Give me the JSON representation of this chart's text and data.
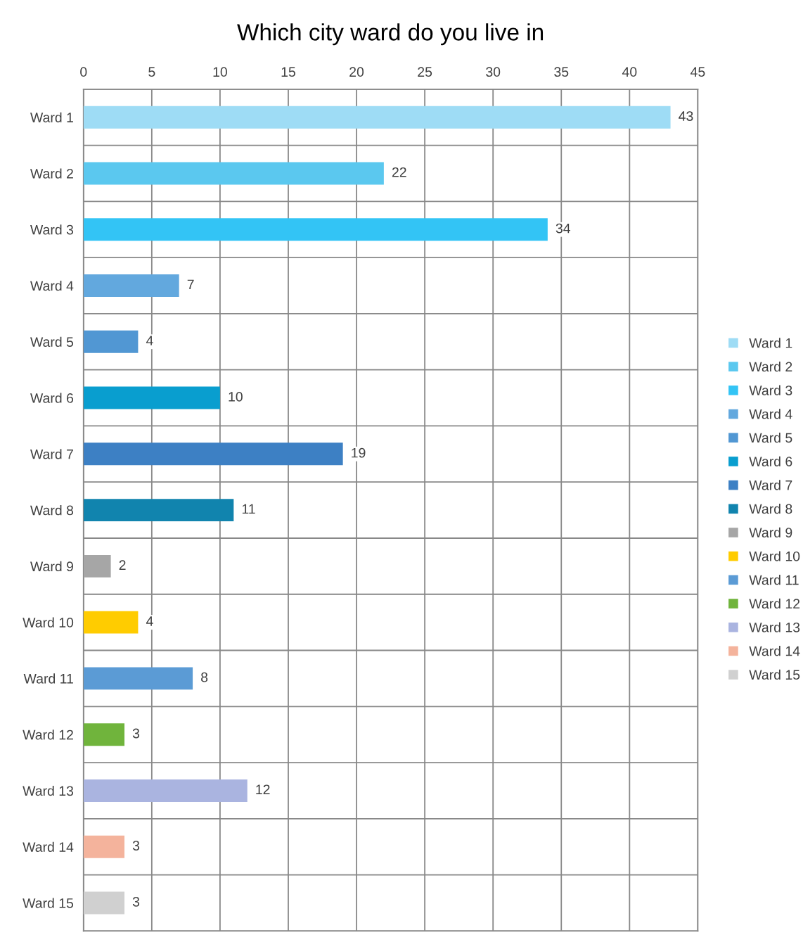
{
  "chart_data": {
    "type": "bar",
    "orientation": "horizontal",
    "title": "Which city ward do you live in",
    "categories": [
      "Ward 1",
      "Ward 2",
      "Ward 3",
      "Ward 4",
      "Ward 5",
      "Ward 6",
      "Ward 7",
      "Ward 8",
      "Ward 9",
      "Ward 10",
      "Ward 11",
      "Ward 12",
      "Ward 13",
      "Ward 14",
      "Ward 15"
    ],
    "series": [
      {
        "name": "Ward 1",
        "color": "#9edcf5",
        "values": [
          43,
          null,
          null,
          null,
          null,
          null,
          null,
          null,
          null,
          null,
          null,
          null,
          null,
          null,
          null
        ]
      },
      {
        "name": "Ward 2",
        "color": "#5bc8ef",
        "values": [
          null,
          22,
          null,
          null,
          null,
          null,
          null,
          null,
          null,
          null,
          null,
          null,
          null,
          null,
          null
        ]
      },
      {
        "name": "Ward 3",
        "color": "#33c4f5",
        "values": [
          null,
          null,
          34,
          null,
          null,
          null,
          null,
          null,
          null,
          null,
          null,
          null,
          null,
          null,
          null
        ]
      },
      {
        "name": "Ward 4",
        "color": "#62a8de",
        "values": [
          null,
          null,
          null,
          7,
          null,
          null,
          null,
          null,
          null,
          null,
          null,
          null,
          null,
          null,
          null
        ]
      },
      {
        "name": "Ward 5",
        "color": "#5197d3",
        "values": [
          null,
          null,
          null,
          null,
          4,
          null,
          null,
          null,
          null,
          null,
          null,
          null,
          null,
          null,
          null
        ]
      },
      {
        "name": "Ward 6",
        "color": "#099ecf",
        "values": [
          null,
          null,
          null,
          null,
          null,
          10,
          null,
          null,
          null,
          null,
          null,
          null,
          null,
          null,
          null
        ]
      },
      {
        "name": "Ward 7",
        "color": "#3d80c4",
        "values": [
          null,
          null,
          null,
          null,
          null,
          null,
          19,
          null,
          null,
          null,
          null,
          null,
          null,
          null,
          null
        ]
      },
      {
        "name": "Ward 8",
        "color": "#1184ae",
        "values": [
          null,
          null,
          null,
          null,
          null,
          null,
          null,
          11,
          null,
          null,
          null,
          null,
          null,
          null,
          null
        ]
      },
      {
        "name": "Ward 9",
        "color": "#a6a6a6",
        "values": [
          null,
          null,
          null,
          null,
          null,
          null,
          null,
          null,
          2,
          null,
          null,
          null,
          null,
          null,
          null
        ]
      },
      {
        "name": "Ward 10",
        "color": "#ffcc00",
        "values": [
          null,
          null,
          null,
          null,
          null,
          null,
          null,
          null,
          null,
          4,
          null,
          null,
          null,
          null,
          null
        ]
      },
      {
        "name": "Ward 11",
        "color": "#5b9bd5",
        "values": [
          null,
          null,
          null,
          null,
          null,
          null,
          null,
          null,
          null,
          null,
          8,
          null,
          null,
          null,
          null
        ]
      },
      {
        "name": "Ward 12",
        "color": "#70b43c",
        "values": [
          null,
          null,
          null,
          null,
          null,
          null,
          null,
          null,
          null,
          null,
          null,
          3,
          null,
          null,
          null
        ]
      },
      {
        "name": "Ward 13",
        "color": "#aab4e0",
        "values": [
          null,
          null,
          null,
          null,
          null,
          null,
          null,
          null,
          null,
          null,
          null,
          null,
          12,
          null,
          null
        ]
      },
      {
        "name": "Ward 14",
        "color": "#f4b39c",
        "values": [
          null,
          null,
          null,
          null,
          null,
          null,
          null,
          null,
          null,
          null,
          null,
          null,
          null,
          3,
          null
        ]
      },
      {
        "name": "Ward 15",
        "color": "#d0d0d0",
        "values": [
          null,
          null,
          null,
          null,
          null,
          null,
          null,
          null,
          null,
          null,
          null,
          null,
          null,
          null,
          3
        ]
      }
    ],
    "xlim": [
      0,
      45
    ],
    "xticks": [
      0,
      5,
      10,
      15,
      20,
      25,
      30,
      35,
      40,
      45
    ],
    "grid": true,
    "legend": "right",
    "data_labels": true
  }
}
